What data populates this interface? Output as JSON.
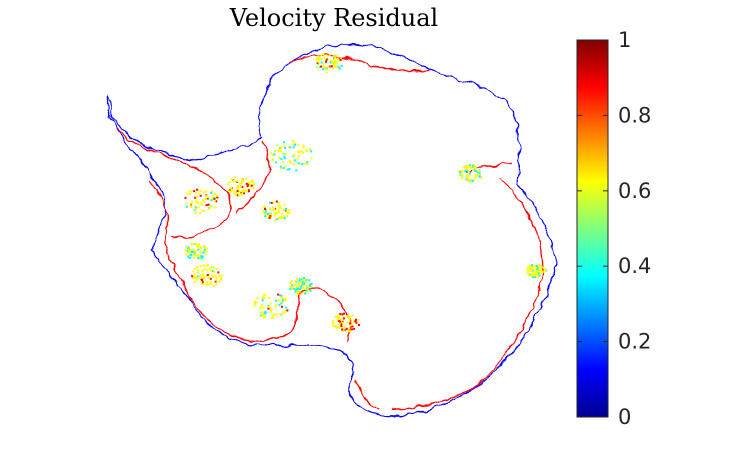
{
  "chart_data": {
    "type": "heatmap",
    "title": "Velocity Residual",
    "xlabel": "",
    "ylabel": "",
    "colormap": "jet",
    "colormap_stops": [
      "#00008f",
      "#0000ff",
      "#00ffff",
      "#ffff00",
      "#ff0000",
      "#800000"
    ],
    "clim": [
      0,
      1
    ],
    "colorbar": {
      "ticks": [
        0,
        0.2,
        0.4,
        0.6,
        0.8,
        1
      ],
      "tick_labels": [
        "0",
        "0.2",
        "0.4",
        "0.6",
        "0.8",
        "1"
      ],
      "location": "right"
    },
    "overlay_colors": {
      "coastline": "#0000ff",
      "grounding_line": "#ff0000"
    },
    "grid": false,
    "axis_visible": false
  }
}
